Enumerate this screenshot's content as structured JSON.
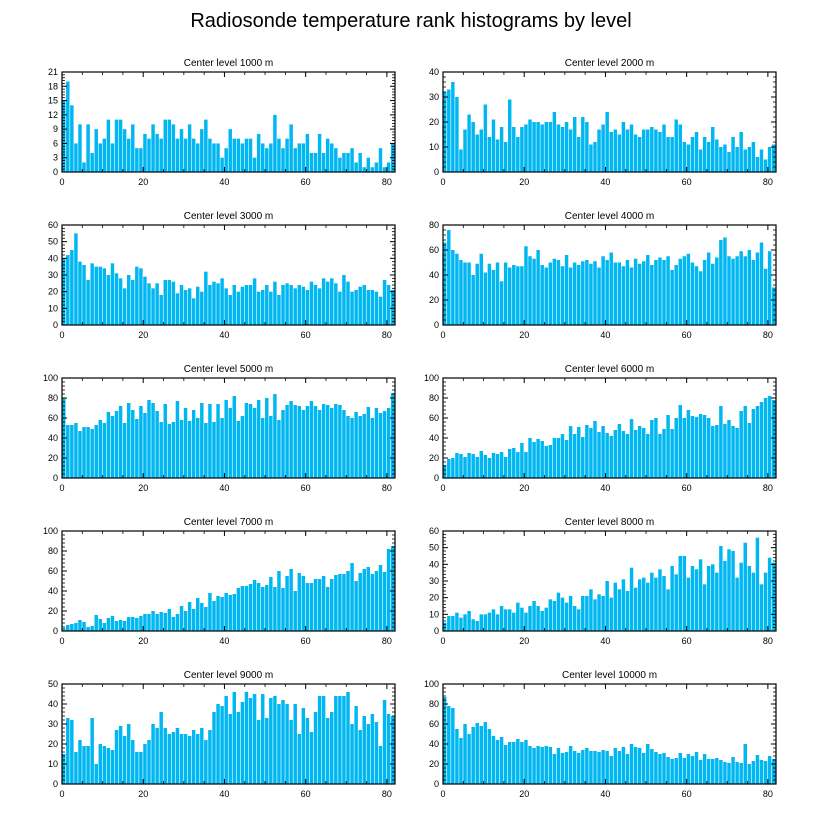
{
  "page_title": "Radiosonde temperature rank histograms by level",
  "colors": {
    "bar": "#00b7f1",
    "axis": "#000000",
    "bar_edge": "#ffffff"
  },
  "chart_data": [
    {
      "type": "bar",
      "title": "Center level 1000 m",
      "xlim": [
        0,
        82
      ],
      "ylim": [
        0,
        21
      ],
      "xticks": [
        0,
        20,
        40,
        60,
        80
      ],
      "yticks": [
        0,
        3,
        6,
        9,
        12,
        15,
        18,
        21
      ],
      "values": [
        15,
        19,
        14,
        6,
        10,
        2,
        10,
        4,
        9,
        6,
        7,
        11,
        6,
        11,
        11,
        9,
        7,
        10,
        5,
        5,
        8,
        7,
        10,
        8,
        7,
        11,
        11,
        10,
        7,
        9,
        7,
        10,
        7,
        6,
        9,
        11,
        7,
        6,
        6,
        3,
        5,
        9,
        7,
        7,
        6,
        7,
        7,
        3,
        8,
        6,
        5,
        6,
        12,
        7,
        5,
        7,
        10,
        5,
        6,
        6,
        8,
        4,
        4,
        8,
        4,
        7,
        6,
        5,
        3,
        4,
        4,
        5,
        2,
        4,
        1,
        3,
        1,
        2,
        5,
        1,
        2,
        6
      ]
    },
    {
      "type": "bar",
      "title": "Center level 2000 m",
      "xlim": [
        0,
        82
      ],
      "ylim": [
        0,
        40
      ],
      "xticks": [
        0,
        20,
        40,
        60,
        80
      ],
      "yticks": [
        0,
        10,
        20,
        30,
        40
      ],
      "values": [
        32,
        33,
        36,
        30,
        9,
        17,
        23,
        20,
        15,
        17,
        27,
        14,
        21,
        13,
        18,
        12,
        29,
        18,
        14,
        18,
        19,
        21,
        20,
        20,
        19,
        20,
        20,
        24,
        19,
        18,
        20,
        17,
        22,
        14,
        22,
        20,
        11,
        12,
        17,
        19,
        24,
        16,
        17,
        15,
        20,
        17,
        19,
        15,
        14,
        17,
        17,
        18,
        17,
        16,
        19,
        14,
        14,
        21,
        19,
        12,
        11,
        14,
        16,
        9,
        14,
        12,
        18,
        13,
        10,
        11,
        8,
        14,
        10,
        16,
        9,
        10,
        12,
        6,
        9,
        5,
        10,
        11
      ]
    },
    {
      "type": "bar",
      "title": "Center level 3000 m",
      "xlim": [
        0,
        82
      ],
      "ylim": [
        0,
        60
      ],
      "xticks": [
        0,
        20,
        40,
        60,
        80
      ],
      "yticks": [
        0,
        10,
        20,
        30,
        40,
        50,
        60
      ],
      "values": [
        40,
        42,
        45,
        55,
        38,
        36,
        27,
        37,
        35,
        35,
        34,
        30,
        37,
        31,
        28,
        22,
        30,
        27,
        35,
        34,
        29,
        25,
        22,
        25,
        18,
        27,
        27,
        26,
        19,
        24,
        21,
        22,
        16,
        23,
        20,
        32,
        24,
        26,
        25,
        28,
        22,
        18,
        24,
        20,
        23,
        24,
        24,
        28,
        20,
        21,
        24,
        20,
        26,
        18,
        24,
        25,
        24,
        22,
        24,
        23,
        21,
        26,
        24,
        22,
        28,
        26,
        28,
        25,
        20,
        30,
        26,
        20,
        21,
        23,
        24,
        21,
        21,
        20,
        17,
        27,
        24,
        21
      ]
    },
    {
      "type": "bar",
      "title": "Center level 4000 m",
      "xlim": [
        0,
        82
      ],
      "ylim": [
        0,
        80
      ],
      "xticks": [
        0,
        20,
        40,
        60,
        80
      ],
      "yticks": [
        0,
        20,
        40,
        60,
        80
      ],
      "values": [
        66,
        76,
        60,
        57,
        52,
        50,
        50,
        40,
        49,
        57,
        42,
        49,
        44,
        50,
        35,
        50,
        46,
        48,
        47,
        47,
        63,
        55,
        53,
        60,
        48,
        46,
        50,
        53,
        52,
        47,
        56,
        46,
        50,
        48,
        51,
        52,
        49,
        51,
        46,
        55,
        52,
        58,
        50,
        50,
        47,
        52,
        46,
        53,
        49,
        51,
        56,
        48,
        52,
        54,
        52,
        55,
        44,
        48,
        53,
        55,
        57,
        50,
        47,
        43,
        52,
        58,
        49,
        54,
        68,
        70,
        55,
        53,
        55,
        59,
        55,
        60,
        52,
        58,
        66,
        45,
        59,
        30
      ]
    },
    {
      "type": "bar",
      "title": "Center level 5000 m",
      "xlim": [
        0,
        82
      ],
      "ylim": [
        0,
        100
      ],
      "xticks": [
        0,
        20,
        40,
        60,
        80
      ],
      "yticks": [
        0,
        20,
        40,
        60,
        80,
        100
      ],
      "values": [
        80,
        53,
        53,
        55,
        47,
        51,
        51,
        49,
        53,
        58,
        55,
        66,
        62,
        67,
        72,
        55,
        75,
        68,
        59,
        72,
        65,
        78,
        75,
        67,
        56,
        74,
        54,
        56,
        77,
        58,
        70,
        57,
        68,
        60,
        75,
        55,
        74,
        56,
        74,
        60,
        78,
        70,
        82,
        57,
        62,
        75,
        74,
        70,
        78,
        60,
        80,
        62,
        84,
        58,
        68,
        73,
        77,
        73,
        72,
        68,
        72,
        77,
        72,
        68,
        74,
        73,
        70,
        74,
        73,
        68,
        62,
        60,
        66,
        62,
        64,
        71,
        60,
        70,
        65,
        67,
        70,
        85
      ]
    },
    {
      "type": "bar",
      "title": "Center level 6000 m",
      "xlim": [
        0,
        82
      ],
      "ylim": [
        0,
        100
      ],
      "xticks": [
        0,
        20,
        40,
        60,
        80
      ],
      "yticks": [
        0,
        20,
        40,
        60,
        80,
        100
      ],
      "values": [
        13,
        19,
        20,
        25,
        24,
        21,
        25,
        24,
        21,
        27,
        23,
        20,
        25,
        24,
        26,
        21,
        29,
        30,
        26,
        35,
        26,
        40,
        36,
        39,
        37,
        32,
        33,
        40,
        40,
        44,
        38,
        52,
        44,
        51,
        41,
        53,
        50,
        57,
        46,
        52,
        45,
        42,
        48,
        54,
        47,
        44,
        59,
        48,
        52,
        50,
        44,
        58,
        60,
        44,
        49,
        63,
        49,
        60,
        73,
        60,
        68,
        62,
        61,
        64,
        63,
        60,
        52,
        53,
        72,
        54,
        58,
        52,
        50,
        67,
        72,
        55,
        69,
        72,
        76,
        80,
        82,
        78
      ]
    },
    {
      "type": "bar",
      "title": "Center level 7000 m",
      "xlim": [
        0,
        82
      ],
      "ylim": [
        0,
        100
      ],
      "xticks": [
        0,
        20,
        40,
        60,
        80
      ],
      "yticks": [
        0,
        20,
        40,
        60,
        80,
        100
      ],
      "values": [
        3,
        6,
        7,
        8,
        11,
        9,
        4,
        5,
        16,
        12,
        8,
        13,
        15,
        10,
        11,
        10,
        14,
        14,
        13,
        15,
        17,
        17,
        20,
        17,
        19,
        18,
        22,
        14,
        17,
        25,
        20,
        29,
        22,
        33,
        28,
        24,
        38,
        30,
        35,
        34,
        38,
        36,
        37,
        43,
        45,
        45,
        47,
        51,
        48,
        44,
        46,
        54,
        44,
        60,
        43,
        55,
        62,
        40,
        58,
        55,
        48,
        48,
        52,
        52,
        55,
        44,
        52,
        56,
        57,
        57,
        60,
        68,
        50,
        58,
        62,
        64,
        57,
        60,
        66,
        59,
        82,
        85
      ]
    },
    {
      "type": "bar",
      "title": "Center level 8000 m",
      "xlim": [
        0,
        82
      ],
      "ylim": [
        0,
        60
      ],
      "xticks": [
        0,
        20,
        40,
        60,
        80
      ],
      "yticks": [
        0,
        10,
        20,
        30,
        40,
        50,
        60
      ],
      "values": [
        5,
        9,
        9,
        11,
        8,
        10,
        12,
        7,
        6,
        10,
        10,
        11,
        13,
        10,
        15,
        13,
        13,
        11,
        17,
        14,
        11,
        15,
        18,
        15,
        12,
        14,
        19,
        18,
        23,
        20,
        17,
        21,
        15,
        13,
        21,
        21,
        25,
        19,
        22,
        21,
        30,
        20,
        29,
        25,
        31,
        24,
        38,
        26,
        31,
        32,
        29,
        35,
        32,
        37,
        33,
        25,
        39,
        34,
        45,
        45,
        32,
        39,
        37,
        43,
        28,
        39,
        40,
        35,
        51,
        42,
        49,
        48,
        32,
        41,
        53,
        39,
        35,
        56,
        28,
        35,
        44,
        41
      ]
    },
    {
      "type": "bar",
      "title": "Center level 9000 m",
      "xlim": [
        0,
        82
      ],
      "ylim": [
        0,
        50
      ],
      "xticks": [
        0,
        20,
        40,
        60,
        80
      ],
      "yticks": [
        0,
        10,
        20,
        30,
        40,
        50
      ],
      "values": [
        15,
        33,
        32,
        16,
        22,
        19,
        19,
        33,
        10,
        20,
        19,
        18,
        17,
        27,
        29,
        24,
        30,
        22,
        16,
        16,
        20,
        22,
        30,
        28,
        36,
        28,
        25,
        26,
        28,
        25,
        25,
        24,
        27,
        25,
        28,
        22,
        27,
        36,
        40,
        39,
        44,
        35,
        46,
        36,
        41,
        46,
        43,
        45,
        32,
        45,
        33,
        43,
        44,
        40,
        42,
        40,
        32,
        40,
        25,
        38,
        33,
        26,
        36,
        44,
        44,
        33,
        36,
        44,
        44,
        44,
        46,
        30,
        39,
        27,
        34,
        30,
        35,
        31,
        19,
        42,
        35,
        34
      ]
    },
    {
      "type": "bar",
      "title": "Center level 10000 m",
      "xlim": [
        0,
        82
      ],
      "ylim": [
        0,
        100
      ],
      "xticks": [
        0,
        20,
        40,
        60,
        80
      ],
      "yticks": [
        0,
        20,
        40,
        60,
        80,
        100
      ],
      "values": [
        87,
        78,
        76,
        55,
        46,
        60,
        50,
        57,
        61,
        58,
        62,
        55,
        48,
        44,
        47,
        39,
        42,
        42,
        45,
        42,
        44,
        38,
        36,
        38,
        37,
        38,
        37,
        30,
        36,
        31,
        32,
        38,
        33,
        31,
        34,
        36,
        33,
        33,
        32,
        34,
        33,
        28,
        36,
        33,
        37,
        30,
        40,
        37,
        36,
        31,
        40,
        35,
        32,
        30,
        31,
        27,
        25,
        26,
        31,
        26,
        30,
        28,
        32,
        24,
        30,
        25,
        25,
        26,
        24,
        22,
        21,
        27,
        22,
        21,
        40,
        20,
        23,
        29,
        24,
        23,
        28,
        25
      ]
    }
  ]
}
